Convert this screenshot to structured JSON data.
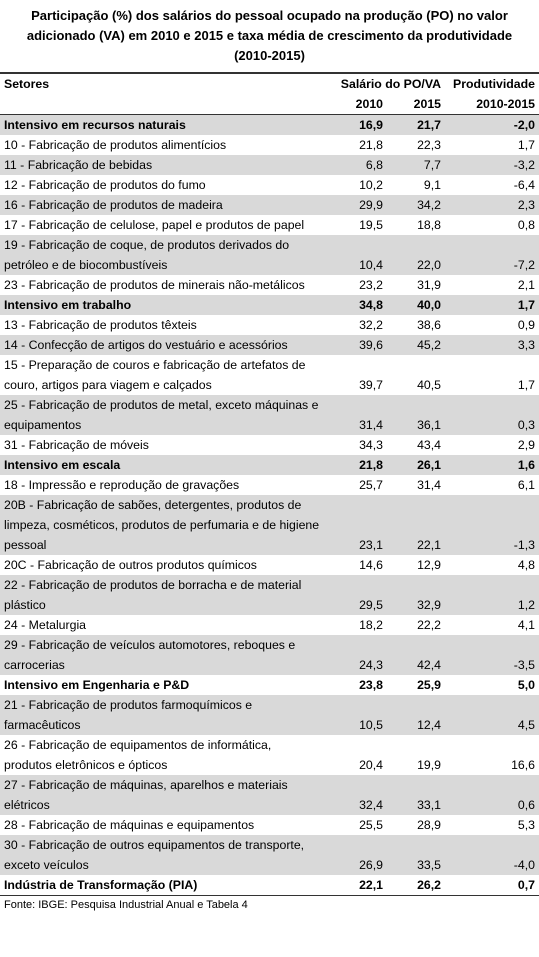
{
  "title": "Participação (%) dos salários do pessoal ocupado na produção (PO) no valor adicionado (VA) em 2010 e 2015 e taxa média de crescimento da produtividade (2010-2015)",
  "table": {
    "header": {
      "sector": "Setores",
      "ratio": "Salário do PO/VA",
      "productivity": "Produtividade",
      "year1": "2010",
      "year2": "2015",
      "period": "2010-2015"
    },
    "rows": [
      {
        "cells": [
          "Intensivo em recursos naturais",
          "16,9",
          "21,7",
          "-2,0"
        ],
        "bold": true
      },
      {
        "cells": [
          "10 - Fabricação de produtos alimentícios",
          "21,8",
          "22,3",
          "1,7"
        ]
      },
      {
        "cells": [
          "11 - Fabricação de bebidas",
          "6,8",
          "7,7",
          "-3,2"
        ]
      },
      {
        "cells": [
          "12 - Fabricação de produtos do fumo",
          "10,2",
          "9,1",
          "-6,4"
        ]
      },
      {
        "cells": [
          "16 - Fabricação de produtos de madeira",
          "29,9",
          "34,2",
          "2,3"
        ]
      },
      {
        "cells": [
          "17 - Fabricação de celulose, papel e produtos de papel",
          "19,5",
          "18,8",
          "0,8"
        ]
      },
      {
        "cells": [
          "19 - Fabricação de coque, de produtos derivados do petróleo e de biocombustíveis",
          "10,4",
          "22,0",
          "-7,2"
        ]
      },
      {
        "cells": [
          "23 - Fabricação de produtos de minerais não-metálicos",
          "23,2",
          "31,9",
          "2,1"
        ]
      },
      {
        "cells": [
          "Intensivo em trabalho",
          "34,8",
          "40,0",
          "1,7"
        ],
        "bold": true
      },
      {
        "cells": [
          "13 - Fabricação de produtos têxteis",
          "32,2",
          "38,6",
          "0,9"
        ]
      },
      {
        "cells": [
          "14 - Confecção de artigos do vestuário e acessórios",
          "39,6",
          "45,2",
          "3,3"
        ]
      },
      {
        "cells": [
          "15 - Preparação de couros e fabricação de artefatos de couro, artigos para viagem e calçados",
          "39,7",
          "40,5",
          "1,7"
        ]
      },
      {
        "cells": [
          "25 - Fabricação de produtos de metal, exceto máquinas e equipamentos",
          "31,4",
          "36,1",
          "0,3"
        ]
      },
      {
        "cells": [
          "31 - Fabricação de móveis",
          "34,3",
          "43,4",
          "2,9"
        ]
      },
      {
        "cells": [
          "Intensivo em escala",
          "21,8",
          "26,1",
          "1,6"
        ],
        "bold": true
      },
      {
        "cells": [
          "18 - Impressão e reprodução de gravações",
          "25,7",
          "31,4",
          "6,1"
        ]
      },
      {
        "cells": [
          "20B - Fabricação de sabões, detergentes, produtos de limpeza, cosméticos, produtos de perfumaria e de higiene pessoal",
          "23,1",
          "22,1",
          "-1,3"
        ]
      },
      {
        "cells": [
          "20C - Fabricação de outros produtos químicos",
          "14,6",
          "12,9",
          "4,8"
        ]
      },
      {
        "cells": [
          "22 - Fabricação de produtos de borracha e de material plástico",
          "29,5",
          "32,9",
          "1,2"
        ]
      },
      {
        "cells": [
          "24 - Metalurgia",
          "18,2",
          "22,2",
          "4,1"
        ]
      },
      {
        "cells": [
          "29 - Fabricação de veículos automotores, reboques e carrocerias",
          "24,3",
          "42,4",
          "-3,5"
        ]
      },
      {
        "cells": [
          "Intensivo em Engenharia e P&D",
          "23,8",
          "25,9",
          "5,0"
        ],
        "bold": true
      },
      {
        "cells": [
          "21 - Fabricação de produtos farmoquímicos e farmacêuticos",
          "10,5",
          "12,4",
          "4,5"
        ]
      },
      {
        "cells": [
          "26 - Fabricação de equipamentos de informática, produtos eletrônicos e ópticos",
          "20,4",
          "19,9",
          "16,6"
        ]
      },
      {
        "cells": [
          "27 - Fabricação de máquinas, aparelhos e materiais elétricos",
          "32,4",
          "33,1",
          "0,6"
        ]
      },
      {
        "cells": [
          "28 - Fabricação de máquinas e equipamentos",
          "25,5",
          "28,9",
          "5,3"
        ]
      },
      {
        "cells": [
          "30 - Fabricação de outros equipamentos de transporte, exceto veículos",
          "26,9",
          "33,5",
          "-4,0"
        ]
      },
      {
        "cells": [
          "Indústria de Transformação (PIA)",
          "22,1",
          "26,2",
          "0,7"
        ],
        "bold": true
      }
    ]
  },
  "source": "Fonte: IBGE: Pesquisa Industrial Anual e Tabela 4"
}
